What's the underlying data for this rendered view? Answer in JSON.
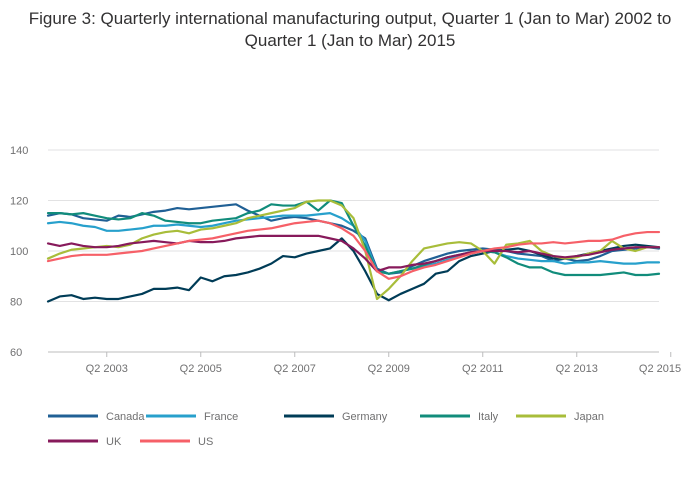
{
  "chart_data": {
    "type": "line",
    "title": "Figure 3: Quarterly international manufacturing output, Quarter 1 (Jan to Mar) 2002 to Quarter 1 (Jan to Mar) 2015",
    "xlabel": "",
    "ylabel": "",
    "ylim": [
      60,
      140
    ],
    "yticks": [
      60,
      80,
      100,
      120,
      140
    ],
    "x_tick_labels": [
      "Q2 2003",
      "Q2 2005",
      "Q2 2007",
      "Q2 2009",
      "Q2 2011",
      "Q2 2013",
      "Q2 2015"
    ],
    "x_tick_index": [
      5,
      13,
      21,
      29,
      37,
      45,
      53
    ],
    "grid": true,
    "legend_position": "bottom",
    "x": [
      "Q1 2002",
      "Q2 2002",
      "Q3 2002",
      "Q4 2002",
      "Q1 2003",
      "Q2 2003",
      "Q3 2003",
      "Q4 2003",
      "Q1 2004",
      "Q2 2004",
      "Q3 2004",
      "Q4 2004",
      "Q1 2005",
      "Q2 2005",
      "Q3 2005",
      "Q4 2005",
      "Q1 2006",
      "Q2 2006",
      "Q3 2006",
      "Q4 2006",
      "Q1 2007",
      "Q2 2007",
      "Q3 2007",
      "Q4 2007",
      "Q1 2008",
      "Q2 2008",
      "Q3 2008",
      "Q4 2008",
      "Q1 2009",
      "Q2 2009",
      "Q3 2009",
      "Q4 2009",
      "Q1 2010",
      "Q2 2010",
      "Q3 2010",
      "Q4 2010",
      "Q1 2011",
      "Q2 2011",
      "Q3 2011",
      "Q4 2011",
      "Q1 2012",
      "Q2 2012",
      "Q3 2012",
      "Q4 2012",
      "Q1 2013",
      "Q2 2013",
      "Q3 2013",
      "Q4 2013",
      "Q1 2014",
      "Q2 2014",
      "Q3 2014",
      "Q4 2014",
      "Q1 2015"
    ],
    "series": [
      {
        "name": "Canada",
        "color": "#206095",
        "values": [
          114,
          115,
          114.5,
          113,
          112.5,
          112,
          114,
          113.5,
          114.5,
          115.5,
          116,
          117,
          116.5,
          117,
          117.5,
          118,
          118.5,
          116,
          114,
          112,
          113,
          113.5,
          113,
          112,
          111,
          110,
          108,
          105,
          93,
          91,
          91.5,
          94,
          96,
          97.5,
          99,
          100,
          100.5,
          101,
          100.5,
          100,
          99,
          98.5,
          98,
          96,
          97,
          96,
          96.5,
          98,
          100,
          100.5,
          101,
          101.5,
          101
        ]
      },
      {
        "name": "France",
        "color": "#27a0cc",
        "values": [
          111,
          111.5,
          111,
          110,
          109.5,
          108,
          108,
          108.5,
          109,
          110,
          110,
          110.5,
          110,
          109.5,
          110,
          111,
          112,
          112.5,
          113,
          113.5,
          114,
          114,
          114,
          114.5,
          115,
          113,
          110,
          104,
          92,
          91,
          92,
          93,
          94,
          95,
          96.5,
          98,
          99,
          100,
          99.5,
          98,
          97,
          96.5,
          96,
          96,
          95,
          95.5,
          95.5,
          96,
          95.5,
          95,
          95,
          95.5,
          95.5
        ]
      },
      {
        "name": "Germany",
        "color": "#003c57",
        "values": [
          80,
          82,
          82.5,
          81,
          81.5,
          81,
          81,
          82,
          83,
          85,
          85,
          85.5,
          84.5,
          89.5,
          88,
          90,
          90.5,
          91.5,
          93,
          95,
          98,
          97.5,
          99,
          100,
          101,
          105,
          100,
          92,
          83,
          80.5,
          83,
          85,
          87,
          91,
          92,
          96,
          98,
          99,
          100,
          100.5,
          101,
          100,
          98.5,
          97,
          97,
          98,
          99,
          100,
          101,
          102,
          102.5,
          102,
          101.5
        ]
      },
      {
        "name": "Italy",
        "color": "#118c7b",
        "values": [
          115,
          115,
          114.5,
          115,
          114,
          113,
          112.5,
          113,
          115,
          114,
          112,
          111.5,
          111,
          111,
          112,
          112.5,
          113,
          115,
          116,
          118.5,
          118,
          118,
          119.5,
          116,
          120,
          119,
          110,
          102,
          92,
          91,
          92,
          93,
          94.5,
          96,
          97.5,
          98.5,
          99.5,
          100,
          99.5,
          97.5,
          95,
          93.5,
          93.5,
          91.5,
          90.5,
          90.5,
          90.5,
          90.5,
          91,
          91.5,
          90.5,
          90.5,
          91
        ]
      },
      {
        "name": "Japan",
        "color": "#a8bd3a",
        "values": [
          97,
          99,
          100.5,
          101,
          101.5,
          102,
          101.5,
          102.5,
          105,
          106.5,
          107.5,
          108,
          107,
          108.5,
          109,
          110,
          111,
          113,
          114,
          115,
          116,
          117,
          119.5,
          120,
          120,
          118,
          113,
          100,
          81,
          85,
          90,
          96,
          101,
          102,
          103,
          103.5,
          103,
          100,
          95,
          102.5,
          103,
          104,
          100,
          98,
          97,
          97.5,
          99,
          100,
          104,
          101,
          100,
          101.5,
          101.5
        ]
      },
      {
        "name": "UK",
        "color": "#871a5b",
        "values": [
          103,
          102,
          103,
          102,
          101.5,
          101.5,
          102,
          103,
          103.5,
          104,
          103.5,
          103,
          104,
          103.5,
          103.5,
          104,
          105,
          105.5,
          106,
          106,
          106,
          106,
          106,
          106,
          105,
          104,
          101,
          97,
          92,
          93.5,
          93.5,
          94.5,
          95,
          96,
          97.5,
          98.5,
          99.5,
          100,
          100,
          100,
          99.5,
          100,
          99,
          98,
          97.5,
          98,
          98.5,
          99.5,
          100.5,
          101,
          101.5,
          101.5,
          101.5
        ]
      },
      {
        "name": "US",
        "color": "#f66068",
        "values": [
          96,
          97,
          98,
          98.5,
          98.5,
          98.5,
          99,
          99.5,
          100,
          101,
          102,
          103,
          104,
          104.5,
          105,
          106,
          107,
          108,
          108.5,
          109,
          110,
          111,
          111.5,
          112,
          111,
          109,
          106,
          100,
          92,
          89,
          90,
          92,
          93.5,
          94.5,
          96,
          97.5,
          99,
          100,
          101,
          101.5,
          102.5,
          103,
          103,
          103.5,
          103,
          103.5,
          104,
          104,
          104.5,
          106,
          107,
          107.5,
          107.5
        ]
      }
    ]
  }
}
